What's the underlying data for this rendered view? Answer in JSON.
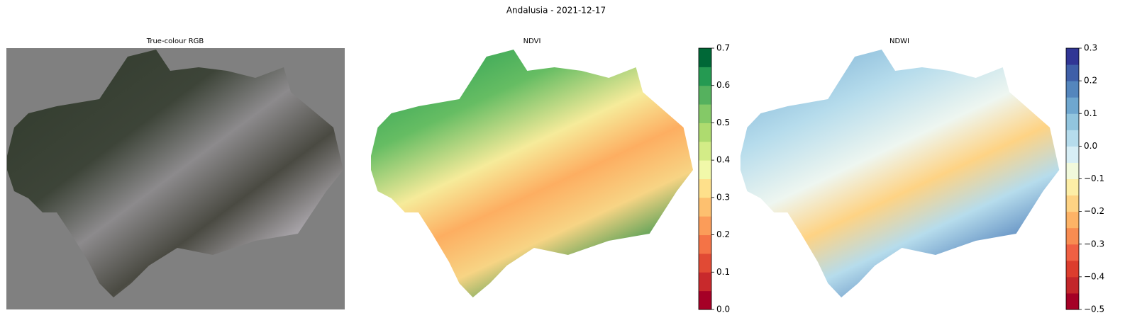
{
  "chart_data": {
    "type": "image-panels",
    "title": "Andalusia - 2021-12-17",
    "panels": [
      {
        "title": "True-colour RGB"
      },
      {
        "title": "NDVI",
        "colorbar": {
          "ylim": [
            0,
            0.7
          ],
          "yticks": [
            {
              "value": 0,
              "label": "0.0"
            },
            0.1,
            0.2,
            0.3,
            0.4,
            0.5,
            0.6,
            0.7
          ],
          "colors": [
            "#a50026",
            "#c8292c",
            "#e14a34",
            "#f47346",
            "#fb9c59",
            "#fdc06f",
            "#fee08b",
            "#f1f8a9",
            "#d3ec87",
            "#aedb6f",
            "#84c967",
            "#55b15e",
            "#259a52",
            "#006837"
          ]
        }
      },
      {
        "title": "NDWI",
        "colorbar": {
          "ylim": [
            -0.5,
            0.3
          ],
          "yticks": [
            {
              "value": -0.5,
              "label": "−0.5"
            },
            {
              "value": -0.4,
              "label": "−0.4"
            },
            {
              "value": -0.3,
              "label": "−0.3"
            },
            {
              "value": -0.2,
              "label": "−0.2"
            },
            {
              "value": -0.1,
              "label": "−0.1"
            },
            {
              "value": 0,
              "label": "0.0"
            },
            0.1,
            0.2,
            0.3
          ],
          "colors": [
            "#a50026",
            "#c3262a",
            "#dc3d2d",
            "#f06043",
            "#f88c51",
            "#fdb366",
            "#fed384",
            "#fdeea6",
            "#f1f9db",
            "#d7eef5",
            "#b6dcec",
            "#92c5de",
            "#6fa7cf",
            "#5486bd",
            "#3f5fa8",
            "#313695"
          ]
        }
      }
    ]
  }
}
